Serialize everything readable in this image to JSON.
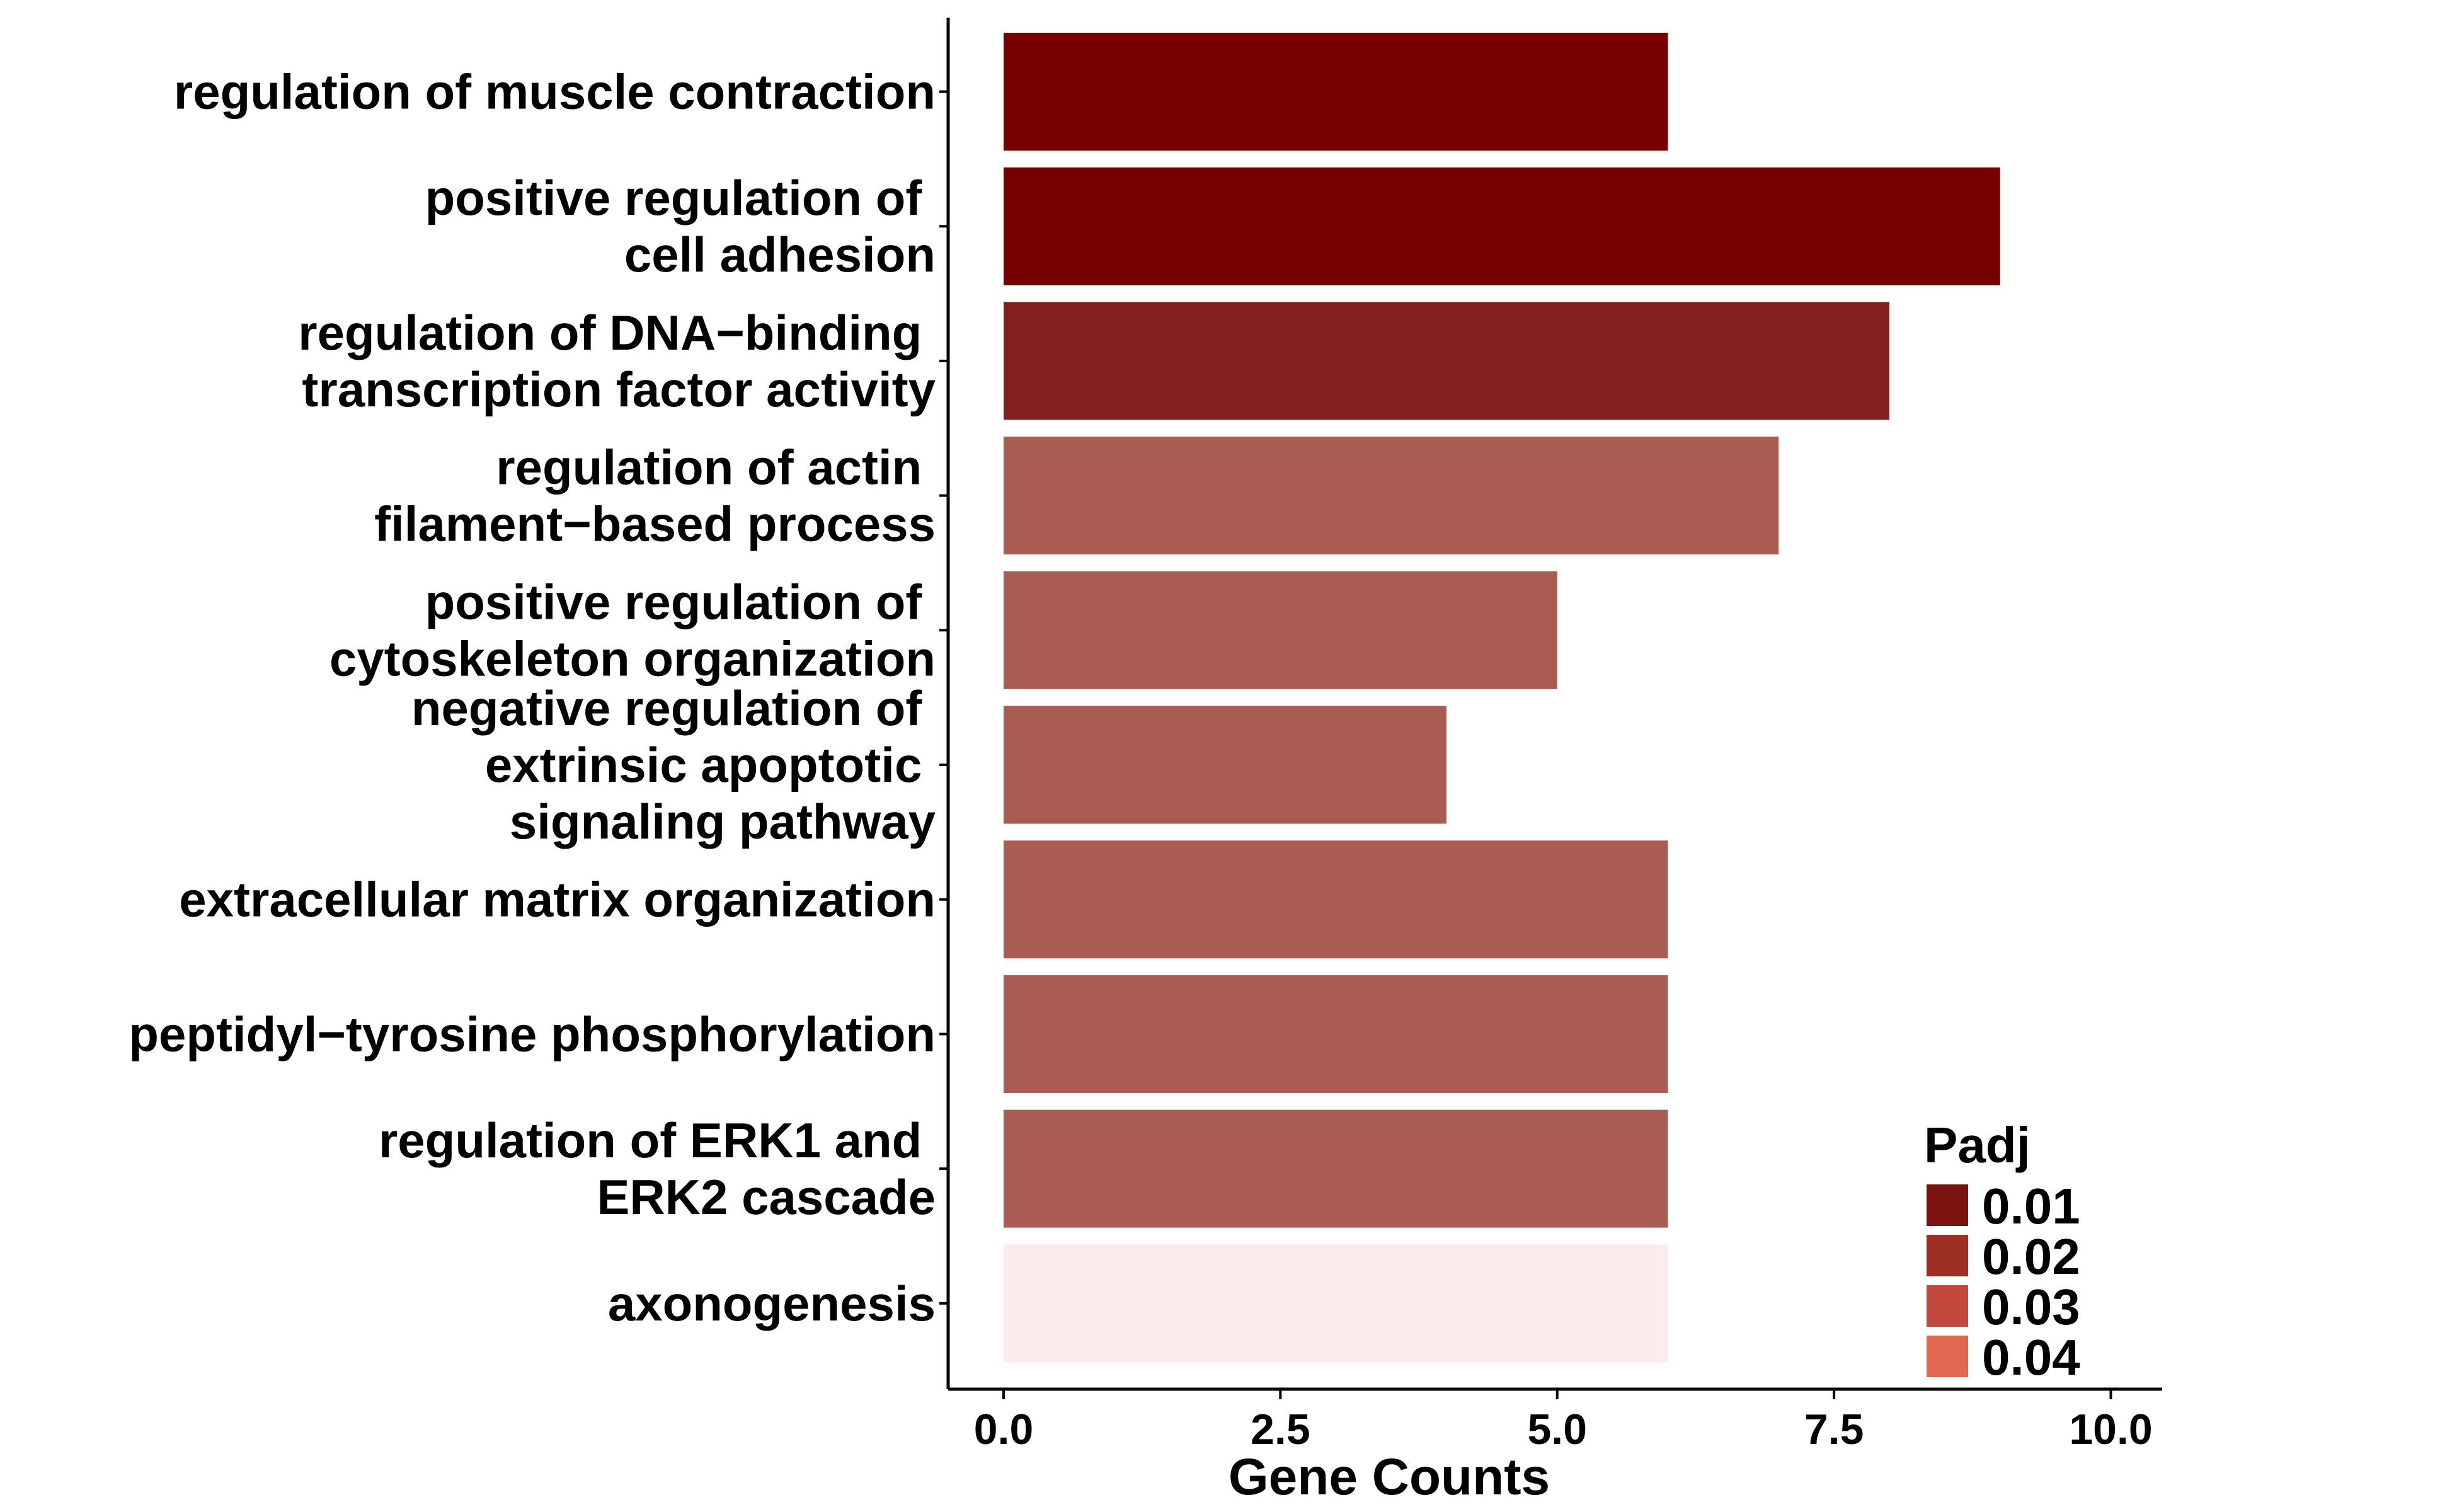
{
  "chart_data": {
    "type": "bar",
    "orientation": "horizontal",
    "categories": [
      "regulation of muscle contraction",
      "positive regulation of \ncell adhesion",
      "regulation of DNA−binding \ntranscription factor activity",
      "regulation of actin \nfilament−based process",
      "positive regulation of \ncytoskeleton organization",
      "negative regulation of \nextrinsic apoptotic \nsignaling pathway",
      "extracellular matrix organization",
      "peptidyl−tyrosine phosphorylation",
      "regulation of ERK1 and \nERK2 cascade",
      "axonogenesis"
    ],
    "values": [
      6,
      9,
      8,
      7,
      5,
      4,
      6,
      6,
      6,
      6
    ],
    "bar_colors": [
      "#760000",
      "#760000",
      "#821f1f",
      "#a85c52",
      "#a85c52",
      "#a85c52",
      "#a85c52",
      "#a85c52",
      "#a85c52",
      "#f9ecea"
    ],
    "xlabel": "Gene Counts",
    "ylabel": "",
    "xlim": [
      0,
      10.5
    ],
    "x_ticks": [
      0,
      2.5,
      5,
      7.5,
      10
    ],
    "x_tick_labels": [
      "0.0",
      "2.5",
      "5.0",
      "7.5",
      "10.0"
    ],
    "grid": false,
    "legend": {
      "title": "Padj",
      "placement": "bottom-right",
      "items": [
        {
          "label": "0.01",
          "color": "#7a1210"
        },
        {
          "label": "0.02",
          "color": "#9d2f25"
        },
        {
          "label": "0.03",
          "color": "#c0493b"
        },
        {
          "label": "0.04",
          "color": "#e06750"
        }
      ]
    }
  }
}
